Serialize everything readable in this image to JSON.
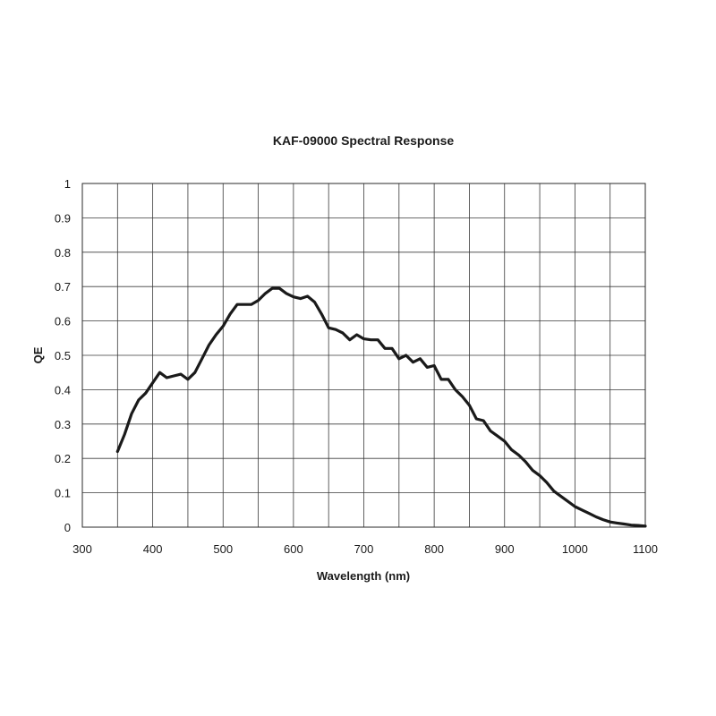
{
  "chart_data": {
    "type": "line",
    "title": "KAF-09000 Spectral Response",
    "xlabel": "Wavelength (nm)",
    "ylabel": "QE",
    "xlim": [
      300,
      1100
    ],
    "ylim": [
      0,
      1
    ],
    "xticks": [
      300,
      400,
      500,
      600,
      700,
      800,
      900,
      1000,
      1100
    ],
    "yticks": [
      0,
      0.1,
      0.2,
      0.3,
      0.4,
      0.5,
      0.6,
      0.7,
      0.8,
      0.9,
      1
    ],
    "ytick_labels": [
      "0",
      "0.1",
      "0.2",
      "0.3",
      "0.4",
      "0.5",
      "0.6",
      "0.7",
      "0.8",
      "0.9",
      "1"
    ],
    "grid": true,
    "legend": "none",
    "series_color": "#1a1a1a",
    "x": [
      350,
      360,
      370,
      380,
      390,
      400,
      410,
      420,
      430,
      440,
      450,
      460,
      470,
      480,
      490,
      500,
      510,
      520,
      530,
      540,
      550,
      560,
      570,
      580,
      590,
      600,
      610,
      620,
      630,
      640,
      650,
      660,
      670,
      680,
      690,
      700,
      710,
      720,
      730,
      740,
      750,
      760,
      770,
      780,
      790,
      800,
      810,
      820,
      830,
      840,
      850,
      860,
      870,
      880,
      890,
      900,
      910,
      920,
      930,
      940,
      950,
      960,
      970,
      980,
      990,
      1000,
      1010,
      1020,
      1030,
      1040,
      1050,
      1060,
      1070,
      1080,
      1090,
      1100
    ],
    "y": [
      0.22,
      0.27,
      0.33,
      0.37,
      0.39,
      0.42,
      0.45,
      0.435,
      0.44,
      0.445,
      0.43,
      0.45,
      0.49,
      0.53,
      0.56,
      0.585,
      0.62,
      0.648,
      0.648,
      0.648,
      0.66,
      0.68,
      0.695,
      0.695,
      0.68,
      0.67,
      0.665,
      0.672,
      0.655,
      0.62,
      0.58,
      0.575,
      0.565,
      0.545,
      0.56,
      0.548,
      0.545,
      0.545,
      0.52,
      0.52,
      0.49,
      0.5,
      0.48,
      0.49,
      0.465,
      0.47,
      0.43,
      0.43,
      0.4,
      0.38,
      0.355,
      0.315,
      0.31,
      0.28,
      0.265,
      0.25,
      0.225,
      0.21,
      0.19,
      0.165,
      0.15,
      0.13,
      0.105,
      0.09,
      0.075,
      0.06,
      0.05,
      0.04,
      0.03,
      0.022,
      0.015,
      0.012,
      0.009,
      0.006,
      0.005,
      0.003
    ]
  }
}
